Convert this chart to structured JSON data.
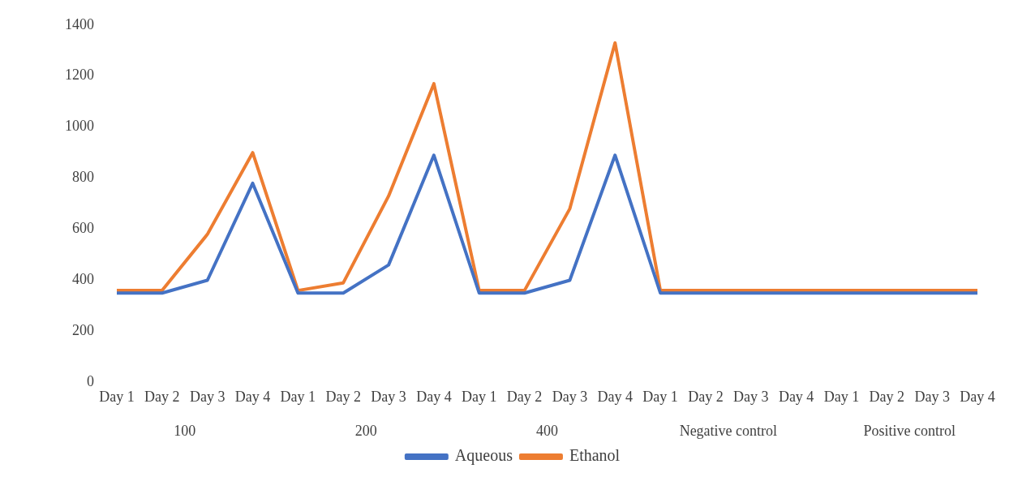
{
  "chart_data": {
    "type": "line",
    "categories": [
      "Day 1",
      "Day 2",
      "Day 3",
      "Day 4",
      "Day 1",
      "Day 2",
      "Day 3",
      "Day 4",
      "Day 1",
      "Day 2",
      "Day 3",
      "Day 4",
      "Day 1",
      "Day 2",
      "Day 3",
      "Day 4",
      "Day 1",
      "Day 2",
      "Day 3",
      "Day 4"
    ],
    "annotations": [
      "100",
      "200",
      "400",
      "Negative control",
      "Positive control"
    ],
    "series": [
      {
        "name": "Aqueous",
        "color": "#4472c4",
        "values": [
          350,
          350,
          400,
          780,
          350,
          350,
          460,
          890,
          350,
          350,
          400,
          890,
          350,
          350,
          350,
          350,
          350,
          350,
          350,
          350
        ]
      },
      {
        "name": "Ethanol",
        "color": "#ed7d31",
        "values": [
          360,
          360,
          580,
          900,
          360,
          390,
          730,
          1170,
          360,
          360,
          680,
          1330,
          360,
          360,
          360,
          360,
          360,
          360,
          360,
          360
        ]
      }
    ],
    "ylim": [
      0,
      1400
    ],
    "yticks": [
      0,
      200,
      400,
      600,
      800,
      1000,
      1200,
      1400
    ],
    "grid": false,
    "legend": "bottom",
    "marker": "none",
    "line_style": "solid"
  }
}
